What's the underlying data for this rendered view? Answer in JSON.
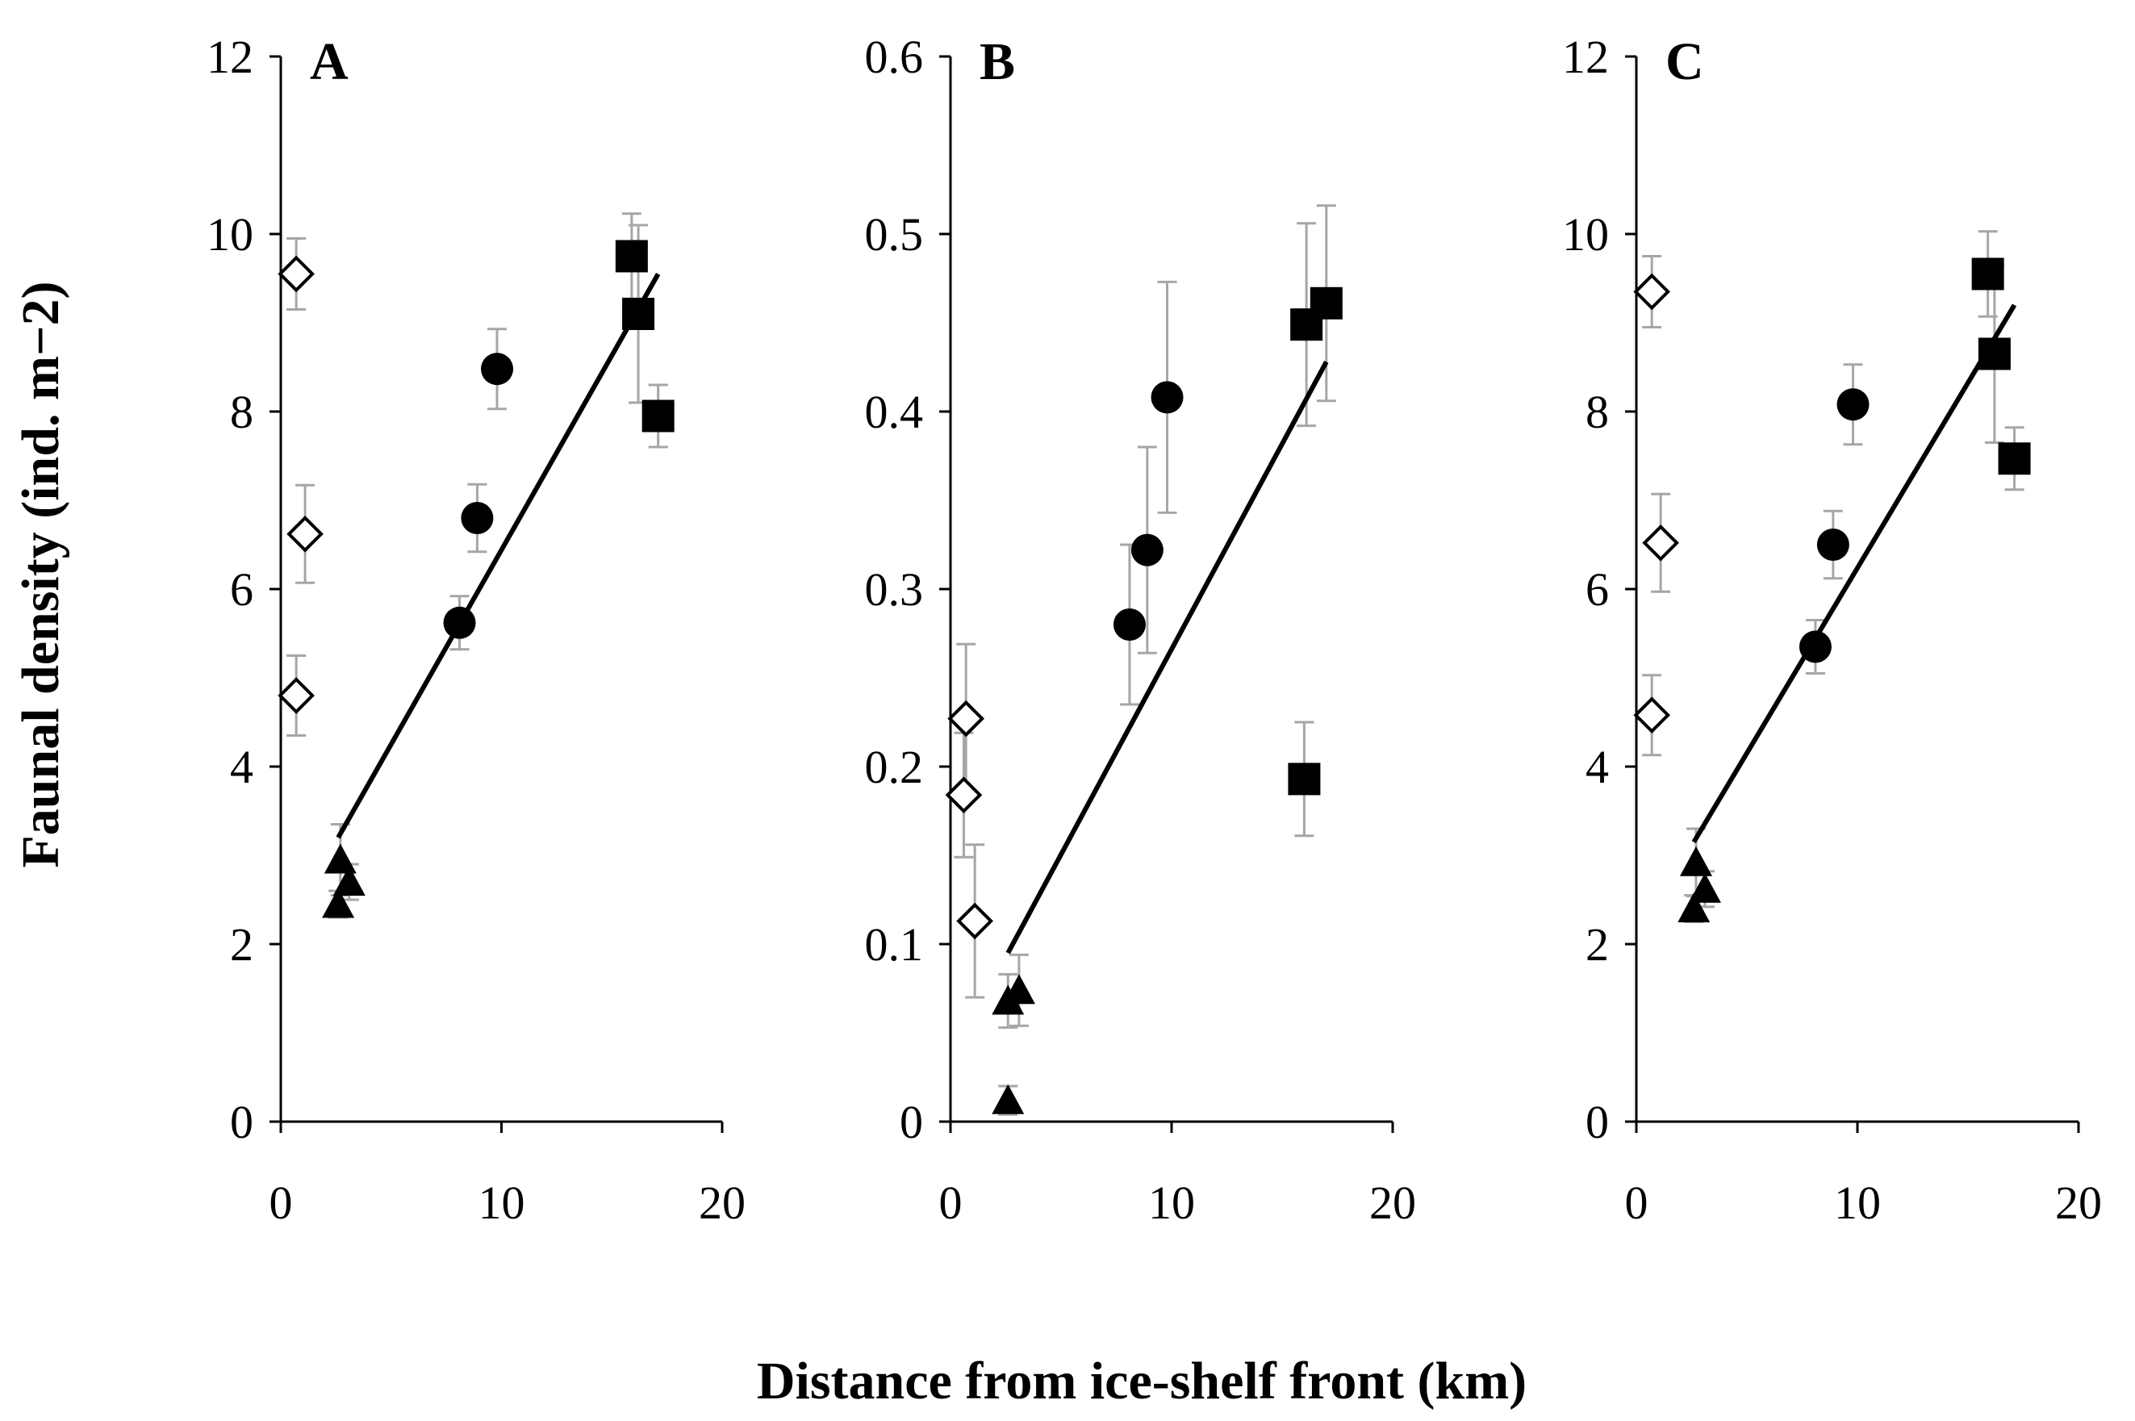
{
  "figure": {
    "ylabel": "Faunal density (ind. m−2)",
    "xlabel": "Distance from ice-shelf front (km)"
  },
  "colors": {
    "marker": "#000000",
    "error_bar": "#a6a6a6",
    "axis": "#000000",
    "open_marker_fill": "#ffffff"
  },
  "chart_data": [
    {
      "type": "scatter",
      "panel": "A",
      "xlim": [
        0,
        20
      ],
      "ylim": [
        0,
        12
      ],
      "xticks": [
        0,
        10,
        20
      ],
      "yticks": [
        0,
        2,
        4,
        6,
        8,
        10,
        12
      ],
      "xtick_labels": [
        "0",
        "10",
        "20"
      ],
      "ytick_labels": [
        "0",
        "2",
        "4",
        "6",
        "8",
        "10",
        "12"
      ],
      "series": [
        {
          "name": "open diamonds",
          "marker": "diamond-open",
          "points": [
            {
              "x": 0.7,
              "y": 9.55,
              "err": 0.4
            },
            {
              "x": 1.1,
              "y": 6.62,
              "err": 0.55
            },
            {
              "x": 0.7,
              "y": 4.8,
              "err": 0.45
            }
          ]
        },
        {
          "name": "triangles",
          "marker": "triangle",
          "points": [
            {
              "x": 2.7,
              "y": 2.95,
              "err": 0.4
            },
            {
              "x": 3.1,
              "y": 2.7,
              "err": 0.2
            },
            {
              "x": 2.6,
              "y": 2.45,
              "err": 0.15
            }
          ]
        },
        {
          "name": "circles",
          "marker": "circle",
          "points": [
            {
              "x": 8.1,
              "y": 5.62,
              "err": 0.3
            },
            {
              "x": 8.9,
              "y": 6.8,
              "err": 0.38
            },
            {
              "x": 9.8,
              "y": 8.48,
              "err": 0.45
            }
          ]
        },
        {
          "name": "squares",
          "marker": "square",
          "points": [
            {
              "x": 15.9,
              "y": 9.75,
              "err": 0.48
            },
            {
              "x": 16.2,
              "y": 9.1,
              "err": 1.0
            },
            {
              "x": 17.1,
              "y": 7.95,
              "err": 0.35
            }
          ]
        }
      ],
      "trendline": {
        "x": [
          2.6,
          17.1
        ],
        "y": [
          3.2,
          9.55
        ]
      }
    },
    {
      "type": "scatter",
      "panel": "B",
      "xlim": [
        0,
        20
      ],
      "ylim": [
        0,
        0.6
      ],
      "xticks": [
        0,
        10,
        20
      ],
      "yticks": [
        0,
        0.1,
        0.2,
        0.3,
        0.4,
        0.5,
        0.6
      ],
      "xtick_labels": [
        "0",
        "10",
        "20"
      ],
      "ytick_labels": [
        "0",
        "0.1",
        "0.2",
        "0.3",
        "0.4",
        "0.5",
        "0.6"
      ],
      "series": [
        {
          "name": "open diamonds",
          "marker": "diamond-open",
          "points": [
            {
              "x": 0.7,
              "y": 0.227,
              "err": 0.042
            },
            {
              "x": 0.6,
              "y": 0.184,
              "err": 0.035
            },
            {
              "x": 1.1,
              "y": 0.113,
              "err": 0.043
            }
          ]
        },
        {
          "name": "triangles",
          "marker": "triangle",
          "points": [
            {
              "x": 3.1,
              "y": 0.074,
              "err": 0.02
            },
            {
              "x": 2.6,
              "y": 0.068,
              "err": 0.015
            },
            {
              "x": 2.6,
              "y": 0.012,
              "err": 0.008
            }
          ]
        },
        {
          "name": "circles",
          "marker": "circle",
          "points": [
            {
              "x": 8.1,
              "y": 0.28,
              "err": 0.045
            },
            {
              "x": 8.9,
              "y": 0.322,
              "err": 0.058
            },
            {
              "x": 9.8,
              "y": 0.408,
              "err": 0.065
            }
          ]
        },
        {
          "name": "squares",
          "marker": "square",
          "points": [
            {
              "x": 16.1,
              "y": 0.449,
              "err": 0.057
            },
            {
              "x": 17.0,
              "y": 0.461,
              "err": 0.055
            },
            {
              "x": 16.0,
              "y": 0.193,
              "err": 0.032
            }
          ]
        }
      ],
      "trendline": {
        "x": [
          2.6,
          17.0
        ],
        "y": [
          0.095,
          0.428
        ]
      }
    },
    {
      "type": "scatter",
      "panel": "C",
      "xlim": [
        0,
        20
      ],
      "ylim": [
        0,
        12
      ],
      "xticks": [
        0,
        10,
        20
      ],
      "yticks": [
        0,
        2,
        4,
        6,
        8,
        10,
        12
      ],
      "xtick_labels": [
        "0",
        "10",
        "20"
      ],
      "ytick_labels": [
        "0",
        "2",
        "4",
        "6",
        "8",
        "10",
        "12"
      ],
      "series": [
        {
          "name": "open diamonds",
          "marker": "diamond-open",
          "points": [
            {
              "x": 0.7,
              "y": 9.35,
              "err": 0.4
            },
            {
              "x": 1.1,
              "y": 6.52,
              "err": 0.55
            },
            {
              "x": 0.7,
              "y": 4.58,
              "err": 0.45
            }
          ]
        },
        {
          "name": "triangles",
          "marker": "triangle",
          "points": [
            {
              "x": 2.7,
              "y": 2.92,
              "err": 0.38
            },
            {
              "x": 3.1,
              "y": 2.62,
              "err": 0.2
            },
            {
              "x": 2.6,
              "y": 2.4,
              "err": 0.15
            }
          ]
        },
        {
          "name": "circles",
          "marker": "circle",
          "points": [
            {
              "x": 8.1,
              "y": 5.35,
              "err": 0.3
            },
            {
              "x": 8.9,
              "y": 6.5,
              "err": 0.38
            },
            {
              "x": 9.8,
              "y": 8.08,
              "err": 0.45
            }
          ]
        },
        {
          "name": "squares",
          "marker": "square",
          "points": [
            {
              "x": 15.9,
              "y": 9.55,
              "err": 0.48
            },
            {
              "x": 16.2,
              "y": 8.65,
              "err": 1.0
            },
            {
              "x": 17.1,
              "y": 7.47,
              "err": 0.35
            }
          ]
        }
      ],
      "trendline": {
        "x": [
          2.6,
          17.1
        ],
        "y": [
          3.15,
          9.2
        ]
      }
    }
  ]
}
